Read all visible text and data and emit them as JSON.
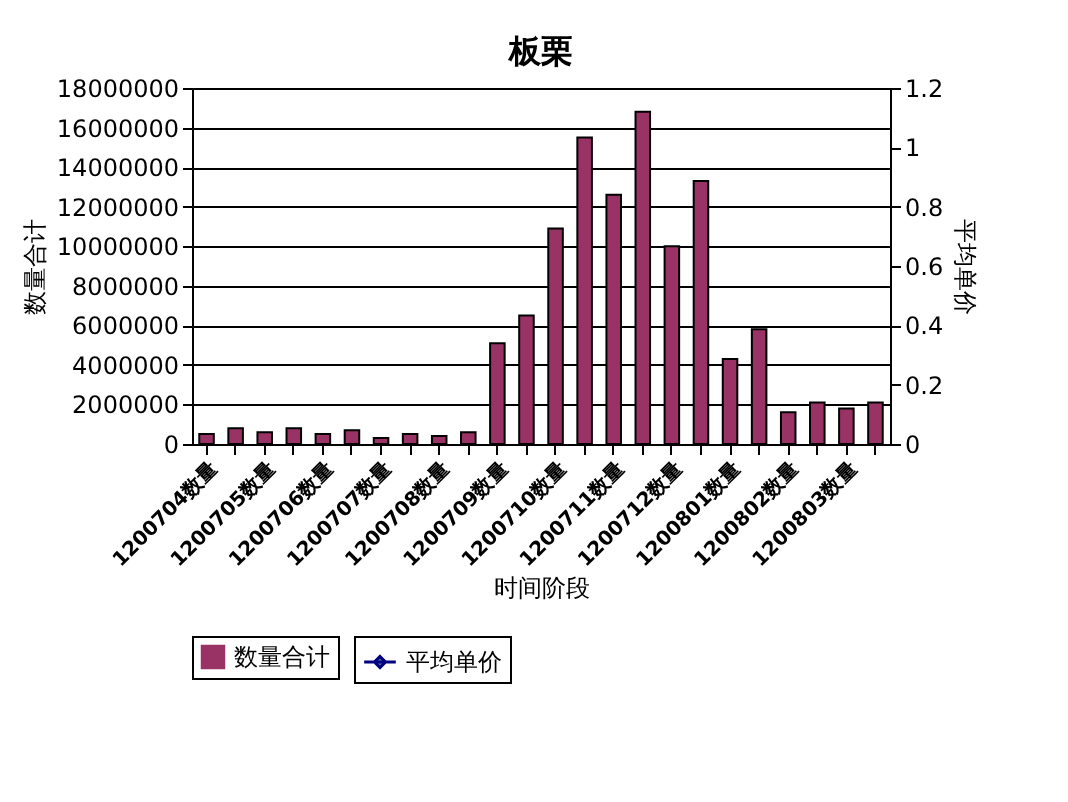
{
  "chart_data": {
    "type": "bar",
    "title": "板栗",
    "xlabel": "时间阶段",
    "ylabel": "数量合计",
    "y2label": "平均单价",
    "categories": [
      "1200704数量",
      null,
      "1200705数量",
      null,
      "1200706数量",
      null,
      "1200707数量",
      null,
      "1200708数量",
      null,
      "1200709数量",
      null,
      "1200710数量",
      null,
      "1200711数量",
      null,
      "1200712数量",
      null,
      "1200801数量",
      null,
      "1200802数量",
      null,
      "1200803数量",
      null
    ],
    "series": [
      {
        "name": "数量合计",
        "color": "#993366",
        "values": [
          500000,
          800000,
          600000,
          800000,
          500000,
          700000,
          300000,
          500000,
          400000,
          600000,
          5100000,
          6500000,
          10900000,
          15500000,
          12600000,
          16800000,
          10000000,
          13300000,
          4300000,
          5800000,
          1600000,
          2100000,
          1800000,
          2100000
        ]
      },
      {
        "name": "平均单价",
        "type": "line",
        "axis": "y2",
        "color": "#000080",
        "values": [
          null,
          null,
          null,
          null,
          null,
          null,
          null,
          null,
          null,
          null,
          null,
          null,
          null,
          null,
          null,
          null,
          null,
          null,
          null,
          null,
          null,
          null,
          null,
          null
        ]
      }
    ],
    "ylim": [
      0,
      18000000
    ],
    "yticks": [
      0,
      2000000,
      4000000,
      6000000,
      8000000,
      10000000,
      12000000,
      14000000,
      16000000,
      18000000
    ],
    "y2lim": [
      0,
      1.2
    ],
    "y2ticks": [
      0,
      0.2,
      0.4,
      0.6,
      0.8,
      1,
      1.2
    ],
    "grid": "y",
    "legend": "bottom",
    "marker": "diamond"
  }
}
